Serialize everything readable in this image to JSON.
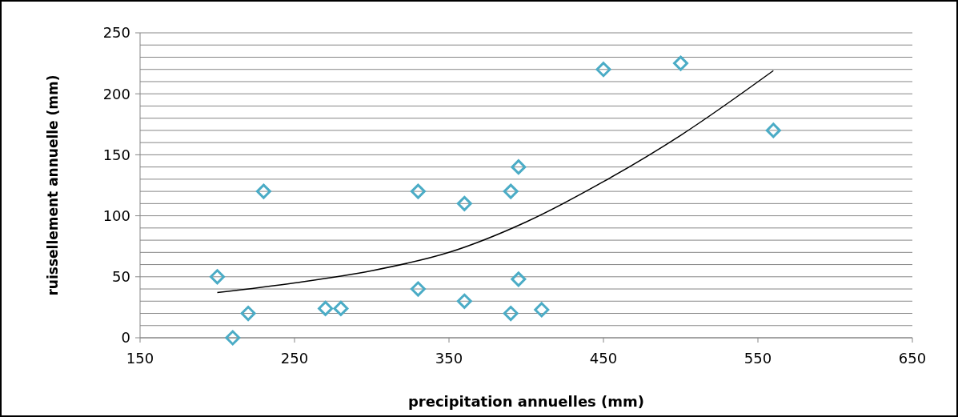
{
  "chart_data": {
    "type": "scatter",
    "xlabel": "precipitation annuelles  (mm)",
    "ylabel": "ruissellement annuelle  (mm)",
    "xlim": [
      150,
      650
    ],
    "xticks": [
      150,
      250,
      350,
      450,
      550,
      650
    ],
    "ylim": [
      0,
      250
    ],
    "yticks": [
      0,
      50,
      100,
      150,
      200,
      250
    ],
    "grid": "y",
    "series": [
      {
        "marker": "diamond",
        "color": "#4bacc6",
        "x": [
          200,
          210,
          220,
          230,
          270,
          280,
          330,
          330,
          360,
          360,
          390,
          390,
          395,
          395,
          410,
          450,
          500,
          560
        ],
        "values": [
          50,
          0,
          20,
          120,
          24,
          24,
          40,
          120,
          110,
          30,
          120,
          20,
          140,
          48,
          23,
          220,
          225,
          170
        ]
      },
      {
        "type": "line",
        "color": "#000000",
        "x": [
          200,
          250,
          300,
          350,
          400,
          450,
          500,
          560
        ],
        "values": [
          37,
          45,
          55,
          70,
          95,
          128,
          166,
          219
        ]
      }
    ]
  }
}
